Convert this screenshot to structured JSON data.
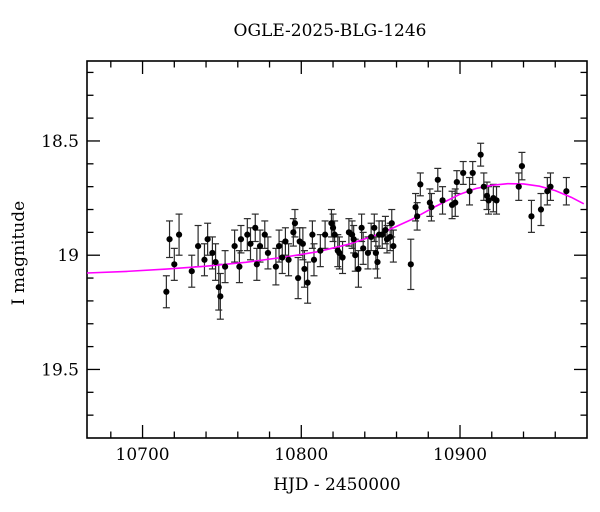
{
  "chart_data": {
    "type": "scatter",
    "title": "OGLE-2025-BLG-1246",
    "xlabel": "HJD - 2450000",
    "ylabel": "I magnitude",
    "xlim": [
      10665,
      10980
    ],
    "ylim": [
      19.8,
      18.15
    ],
    "y_axis_inverted": true,
    "grid": false,
    "legend": "none",
    "x_ticks": {
      "major": [
        10700,
        10800,
        10900
      ],
      "major_labels": [
        "10700",
        "10800",
        "10900"
      ],
      "minor_step": 20
    },
    "y_ticks": {
      "major": [
        18.5,
        19.0,
        19.5
      ],
      "major_labels": [
        "18.5",
        "19",
        "19.5"
      ],
      "minor_step": 0.1
    },
    "colors": {
      "background": "#ffffff",
      "frame": "#000000",
      "point": "#000000",
      "error_bar": "#2b2b2b",
      "model_curve": "#ff00ff"
    },
    "model_curve": [
      [
        10665,
        19.078
      ],
      [
        10690,
        19.071
      ],
      [
        10715,
        19.061
      ],
      [
        10740,
        19.048
      ],
      [
        10765,
        19.031
      ],
      [
        10790,
        19.008
      ],
      [
        10810,
        18.985
      ],
      [
        10830,
        18.952
      ],
      [
        10850,
        18.905
      ],
      [
        10870,
        18.842
      ],
      [
        10885,
        18.785
      ],
      [
        10900,
        18.733
      ],
      [
        10910,
        18.708
      ],
      [
        10920,
        18.694
      ],
      [
        10930,
        18.687
      ],
      [
        10940,
        18.688
      ],
      [
        10950,
        18.698
      ],
      [
        10960,
        18.717
      ],
      [
        10970,
        18.746
      ],
      [
        10978,
        18.775
      ]
    ],
    "points": [
      [
        10715,
        19.16,
        0.07
      ],
      [
        10717,
        18.93,
        0.08
      ],
      [
        10720,
        19.04,
        0.07
      ],
      [
        10723,
        18.91,
        0.09
      ],
      [
        10731,
        19.07,
        0.07
      ],
      [
        10735,
        18.96,
        0.09
      ],
      [
        10739,
        19.02,
        0.07
      ],
      [
        10741,
        18.93,
        0.07
      ],
      [
        10744,
        18.99,
        0.07
      ],
      [
        10746,
        19.03,
        0.08
      ],
      [
        10748,
        19.14,
        0.1
      ],
      [
        10749,
        19.18,
        0.1
      ],
      [
        10752,
        19.05,
        0.07
      ],
      [
        10758,
        18.96,
        0.07
      ],
      [
        10761,
        19.05,
        0.07
      ],
      [
        10762,
        18.93,
        0.06
      ],
      [
        10766,
        18.91,
        0.07
      ],
      [
        10768,
        18.95,
        0.07
      ],
      [
        10771,
        18.88,
        0.06
      ],
      [
        10772,
        19.04,
        0.07
      ],
      [
        10774,
        18.96,
        0.07
      ],
      [
        10777,
        18.91,
        0.06
      ],
      [
        10779,
        18.99,
        0.07
      ],
      [
        10784,
        19.05,
        0.08
      ],
      [
        10786,
        18.96,
        0.07
      ],
      [
        10788,
        19.01,
        0.07
      ],
      [
        10790,
        18.94,
        0.06
      ],
      [
        10792,
        19.02,
        0.07
      ],
      [
        10795,
        18.9,
        0.06
      ],
      [
        10796,
        18.86,
        0.06
      ],
      [
        10798,
        19.1,
        0.09
      ],
      [
        10799,
        18.94,
        0.06
      ],
      [
        10801,
        18.95,
        0.07
      ],
      [
        10802,
        19.06,
        0.08
      ],
      [
        10804,
        19.12,
        0.09
      ],
      [
        10807,
        18.91,
        0.06
      ],
      [
        10808,
        19.02,
        0.07
      ],
      [
        10812,
        18.98,
        0.07
      ],
      [
        10815,
        18.91,
        0.06
      ],
      [
        10819,
        18.86,
        0.06
      ],
      [
        10820,
        18.88,
        0.06
      ],
      [
        10821,
        18.91,
        0.06
      ],
      [
        10823,
        18.98,
        0.07
      ],
      [
        10824,
        18.99,
        0.07
      ],
      [
        10826,
        19.01,
        0.07
      ],
      [
        10830,
        18.9,
        0.06
      ],
      [
        10832,
        18.91,
        0.06
      ],
      [
        10833,
        18.93,
        0.06
      ],
      [
        10834,
        19.0,
        0.07
      ],
      [
        10836,
        19.06,
        0.08
      ],
      [
        10838,
        18.88,
        0.06
      ],
      [
        10839,
        18.97,
        0.07
      ],
      [
        10842,
        18.99,
        0.07
      ],
      [
        10844,
        18.92,
        0.06
      ],
      [
        10846,
        18.88,
        0.06
      ],
      [
        10847,
        18.99,
        0.07
      ],
      [
        10848,
        19.03,
        0.07
      ],
      [
        10849,
        18.91,
        0.06
      ],
      [
        10851,
        18.91,
        0.06
      ],
      [
        10853,
        18.89,
        0.06
      ],
      [
        10854,
        18.93,
        0.06
      ],
      [
        10856,
        18.92,
        0.06
      ],
      [
        10857,
        18.86,
        0.06
      ],
      [
        10858,
        18.96,
        0.07
      ],
      [
        10869,
        19.04,
        0.11
      ],
      [
        10872,
        18.79,
        0.06
      ],
      [
        10873,
        18.83,
        0.06
      ],
      [
        10875,
        18.69,
        0.05
      ],
      [
        10881,
        18.77,
        0.06
      ],
      [
        10882,
        18.79,
        0.06
      ],
      [
        10886,
        18.67,
        0.05
      ],
      [
        10889,
        18.76,
        0.06
      ],
      [
        10895,
        18.78,
        0.06
      ],
      [
        10897,
        18.77,
        0.06
      ],
      [
        10898,
        18.68,
        0.05
      ],
      [
        10902,
        18.64,
        0.05
      ],
      [
        10906,
        18.72,
        0.06
      ],
      [
        10908,
        18.64,
        0.05
      ],
      [
        10913,
        18.56,
        0.05
      ],
      [
        10915,
        18.7,
        0.06
      ],
      [
        10917,
        18.74,
        0.06
      ],
      [
        10918,
        18.76,
        0.06
      ],
      [
        10921,
        18.75,
        0.06
      ],
      [
        10923,
        18.76,
        0.06
      ],
      [
        10937,
        18.7,
        0.06
      ],
      [
        10939,
        18.61,
        0.06
      ],
      [
        10945,
        18.83,
        0.07
      ],
      [
        10951,
        18.8,
        0.07
      ],
      [
        10955,
        18.72,
        0.06
      ],
      [
        10957,
        18.7,
        0.06
      ],
      [
        10967,
        18.72,
        0.06
      ]
    ]
  }
}
